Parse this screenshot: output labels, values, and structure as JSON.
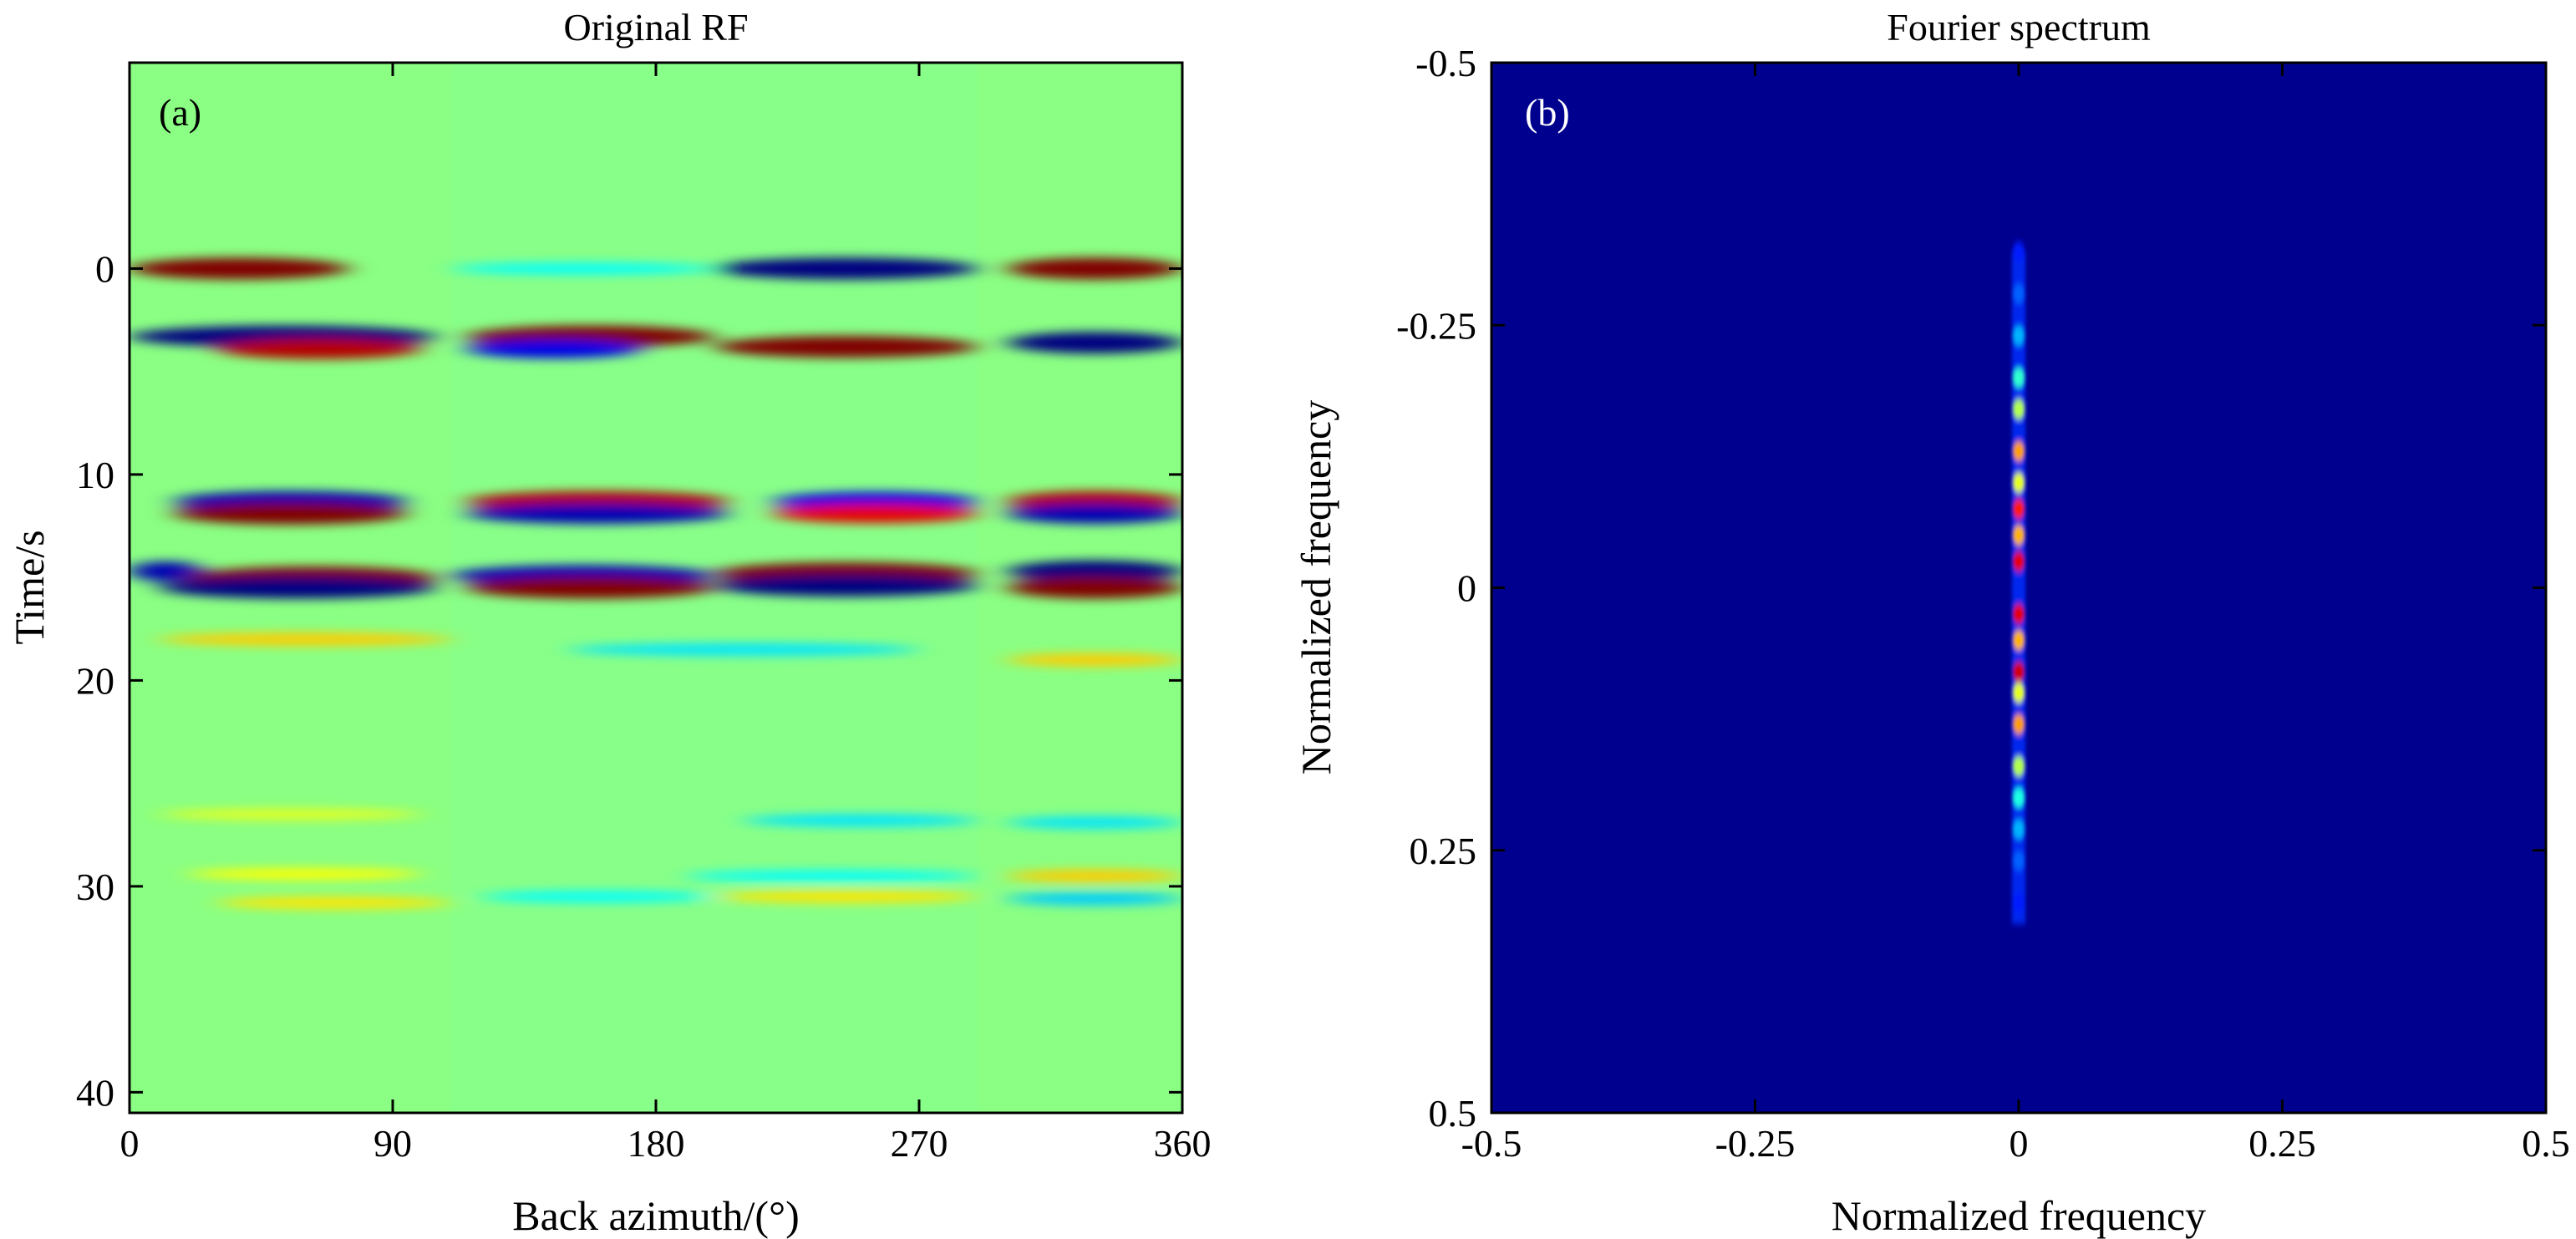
{
  "chart_data": [
    {
      "type": "heatmap",
      "title": "Original RF",
      "panel_label": "(a)",
      "xlabel": "Back azimuth/(°)",
      "ylabel": "Time/s",
      "xlim": [
        0,
        360
      ],
      "ylim": [
        -10,
        41
      ],
      "y_reversed": true,
      "xticks": [
        0,
        90,
        180,
        270,
        360
      ],
      "xtick_labels": [
        "0",
        "90",
        "180",
        "270",
        "360"
      ],
      "yticks": [
        0,
        10,
        20,
        30,
        40
      ],
      "ytick_labels": [
        "0",
        "10",
        "20",
        "30",
        "40"
      ],
      "colormap": "jet",
      "background_color": "#88ff88",
      "bands": [
        {
          "t": 0.0,
          "x0": 0,
          "x1": 75,
          "amp": 1.0
        },
        {
          "t": 0.0,
          "x0": 110,
          "x1": 200,
          "amp": -0.25
        },
        {
          "t": 0.0,
          "x0": 200,
          "x1": 290,
          "amp": -1.0
        },
        {
          "t": 0.0,
          "x0": 300,
          "x1": 360,
          "amp": 1.0
        },
        {
          "t": 3.3,
          "x0": 0,
          "x1": 105,
          "amp": -1.0
        },
        {
          "t": 3.9,
          "x0": 30,
          "x1": 100,
          "amp": 0.9
        },
        {
          "t": 3.3,
          "x0": 115,
          "x1": 200,
          "amp": 1.0
        },
        {
          "t": 3.8,
          "x0": 200,
          "x1": 290,
          "amp": 1.0
        },
        {
          "t": 3.9,
          "x0": 115,
          "x1": 175,
          "amp": -0.8
        },
        {
          "t": 3.6,
          "x0": 300,
          "x1": 360,
          "amp": -1.0
        },
        {
          "t": 11.3,
          "x0": 15,
          "x1": 95,
          "amp": -0.9
        },
        {
          "t": 11.9,
          "x0": 15,
          "x1": 95,
          "amp": 1.0
        },
        {
          "t": 11.3,
          "x0": 115,
          "x1": 205,
          "amp": 0.9
        },
        {
          "t": 11.9,
          "x0": 115,
          "x1": 205,
          "amp": -0.9
        },
        {
          "t": 11.3,
          "x0": 220,
          "x1": 290,
          "amp": -0.8
        },
        {
          "t": 11.9,
          "x0": 220,
          "x1": 290,
          "amp": 0.8
        },
        {
          "t": 11.3,
          "x0": 300,
          "x1": 360,
          "amp": 0.9
        },
        {
          "t": 11.9,
          "x0": 300,
          "x1": 360,
          "amp": -0.9
        },
        {
          "t": 14.7,
          "x0": 0,
          "x1": 25,
          "amp": -0.9
        },
        {
          "t": 15.0,
          "x0": 20,
          "x1": 105,
          "amp": 1.0
        },
        {
          "t": 15.5,
          "x0": 10,
          "x1": 105,
          "amp": -1.0
        },
        {
          "t": 14.9,
          "x0": 110,
          "x1": 200,
          "amp": -0.9
        },
        {
          "t": 15.5,
          "x0": 115,
          "x1": 200,
          "amp": 1.0
        },
        {
          "t": 14.8,
          "x0": 200,
          "x1": 290,
          "amp": 1.0
        },
        {
          "t": 15.4,
          "x0": 200,
          "x1": 290,
          "amp": -1.0
        },
        {
          "t": 14.7,
          "x0": 300,
          "x1": 360,
          "amp": -1.0
        },
        {
          "t": 15.5,
          "x0": 300,
          "x1": 360,
          "amp": 1.0
        },
        {
          "t": 18.0,
          "x0": 10,
          "x1": 110,
          "amp": 0.35
        },
        {
          "t": 18.5,
          "x0": 150,
          "x1": 270,
          "amp": -0.3
        },
        {
          "t": 19.0,
          "x0": 300,
          "x1": 360,
          "amp": 0.35
        },
        {
          "t": 26.5,
          "x0": 10,
          "x1": 100,
          "amp": 0.2
        },
        {
          "t": 26.8,
          "x0": 210,
          "x1": 290,
          "amp": -0.3
        },
        {
          "t": 26.9,
          "x0": 300,
          "x1": 360,
          "amp": -0.3
        },
        {
          "t": 29.4,
          "x0": 20,
          "x1": 100,
          "amp": 0.25
        },
        {
          "t": 29.5,
          "x0": 190,
          "x1": 290,
          "amp": -0.25
        },
        {
          "t": 29.5,
          "x0": 300,
          "x1": 360,
          "amp": 0.35
        },
        {
          "t": 30.8,
          "x0": 30,
          "x1": 110,
          "amp": 0.3
        },
        {
          "t": 30.5,
          "x0": 120,
          "x1": 200,
          "amp": -0.25
        },
        {
          "t": 30.5,
          "x0": 200,
          "x1": 290,
          "amp": 0.3
        },
        {
          "t": 30.6,
          "x0": 300,
          "x1": 360,
          "amp": -0.35
        }
      ]
    },
    {
      "type": "heatmap",
      "title": "Fourier spectrum",
      "panel_label": "(b)",
      "xlabel": "Normalized frequency",
      "ylabel": "Normalized frequency",
      "xlim": [
        -0.5,
        0.5
      ],
      "ylim": [
        -0.5,
        0.5
      ],
      "y_reversed": true,
      "xticks": [
        -0.5,
        -0.25,
        0,
        0.25,
        0.5
      ],
      "xtick_labels": [
        "-0.5",
        "-0.25",
        "0",
        "0.25",
        "0.5"
      ],
      "yticks": [
        -0.5,
        -0.25,
        0,
        0.25,
        0.5
      ],
      "ytick_labels": [
        "-0.5",
        "-0.25",
        "0",
        "0.25",
        "0.5"
      ],
      "colormap": "jet",
      "background_color": "#00008f",
      "ridge": {
        "kx": 0.0,
        "ky_range": [
          -0.32,
          0.32
        ]
      },
      "peaks": [
        {
          "ky": -0.32,
          "amp": 0.15
        },
        {
          "ky": -0.28,
          "amp": 0.22
        },
        {
          "ky": -0.24,
          "amp": 0.3
        },
        {
          "ky": -0.2,
          "amp": 0.42
        },
        {
          "ky": -0.17,
          "amp": 0.55
        },
        {
          "ky": -0.13,
          "amp": 0.72
        },
        {
          "ky": -0.1,
          "amp": 0.6
        },
        {
          "ky": -0.075,
          "amp": 0.85
        },
        {
          "ky": -0.05,
          "amp": 0.7
        },
        {
          "ky": -0.025,
          "amp": 0.9
        },
        {
          "ky": 0.025,
          "amp": 0.9
        },
        {
          "ky": 0.05,
          "amp": 0.7
        },
        {
          "ky": 0.08,
          "amp": 0.92
        },
        {
          "ky": 0.1,
          "amp": 0.6
        },
        {
          "ky": 0.13,
          "amp": 0.72
        },
        {
          "ky": 0.17,
          "amp": 0.55
        },
        {
          "ky": 0.2,
          "amp": 0.4
        },
        {
          "ky": 0.23,
          "amp": 0.3
        },
        {
          "ky": 0.26,
          "amp": 0.22
        },
        {
          "ky": 0.3,
          "amp": 0.15
        }
      ]
    }
  ]
}
